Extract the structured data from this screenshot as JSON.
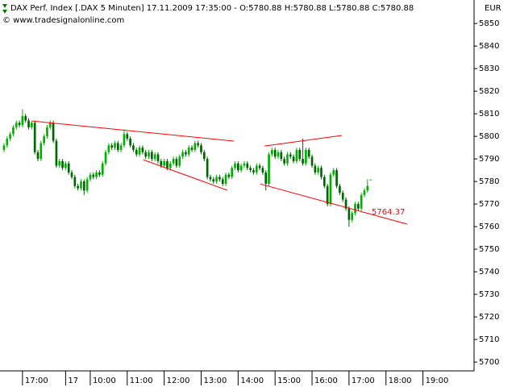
{
  "chart_data": {
    "type": "candlestick",
    "title": "DAX Perf. Index [.DAX  5 Minuten] 17.11.2009 17:35:00 - O:5780.88 H:5780.88 L:5780.88 C:5780.88",
    "subtitle": "© www.tradesignalonline.com",
    "y_label": "EUR",
    "up_color": "#00b000",
    "down_color": "#006400",
    "trend_color": "#ff0000",
    "ylim": [
      5696.1,
      5860.4
    ],
    "yticks": [
      5850,
      5840,
      5830,
      5820,
      5810,
      5800,
      5790,
      5780,
      5770,
      5760,
      5750,
      5740,
      5730,
      5720,
      5710,
      5700
    ],
    "xlim": [
      -1.3,
      152.6
    ],
    "xticks": [
      {
        "value": 6,
        "label": "17:00"
      },
      {
        "value": 20,
        "label": "17"
      },
      {
        "value": 28,
        "label": "10:00"
      },
      {
        "value": 40,
        "label": "11:00"
      },
      {
        "value": 52,
        "label": "12:00"
      },
      {
        "value": 64,
        "label": "13:00"
      },
      {
        "value": 76,
        "label": "14:00"
      },
      {
        "value": 88,
        "label": "15:00"
      },
      {
        "value": 100,
        "label": "16:00"
      },
      {
        "value": 112,
        "label": "17:00"
      },
      {
        "value": 124,
        "label": "18:00"
      },
      {
        "value": 136,
        "label": "19:00"
      }
    ],
    "open": [
      5794,
      5796,
      5799,
      5801,
      5804,
      5806,
      5805,
      5809,
      5807,
      5804,
      5806,
      5793,
      5790,
      5797,
      5800,
      5804,
      5806,
      5798,
      5787,
      5789,
      5786,
      5788,
      5784,
      5782,
      5778,
      5777,
      5780,
      5776,
      5781,
      5783,
      5782,
      5784,
      5783,
      5788,
      5793,
      5796,
      5795,
      5797,
      5794,
      5796,
      5801,
      5799,
      5796,
      5794,
      5792,
      5795,
      5793,
      5791,
      5793,
      5790,
      5792,
      5789,
      5787,
      5789,
      5786,
      5788,
      5790,
      5787,
      5791,
      5793,
      5792,
      5795,
      5794,
      5797,
      5796,
      5793,
      5790,
      5782,
      5781,
      5780,
      5782,
      5781,
      5779,
      5783,
      5782,
      5786,
      5788,
      5785,
      5787,
      5788,
      5786,
      5785,
      5784,
      5787,
      5786,
      5784,
      5779,
      5792,
      5794,
      5791,
      5793,
      5790,
      5788,
      5792,
      5791,
      5789,
      5794,
      5790,
      5788,
      5794,
      5791,
      5787,
      5784,
      5786,
      5782,
      5778,
      5770,
      5783,
      5785,
      5778,
      5775,
      5772,
      5768,
      5763,
      5766,
      5770,
      5768,
      5774,
      5776,
      5780.88
    ],
    "high": [
      5797,
      5800,
      5802,
      5805,
      5807,
      5807,
      5812,
      5810,
      5808,
      5807,
      5807,
      5794,
      5798,
      5801,
      5805,
      5807,
      5807,
      5799,
      5790,
      5790,
      5789,
      5789,
      5785,
      5783,
      5779,
      5781,
      5781,
      5782,
      5784,
      5784,
      5785,
      5785,
      5789,
      5794,
      5797,
      5797,
      5798,
      5798,
      5797,
      5803,
      5802,
      5800,
      5797,
      5795,
      5796,
      5796,
      5794,
      5794,
      5794,
      5793,
      5793,
      5790,
      5790,
      5790,
      5789,
      5791,
      5791,
      5792,
      5794,
      5794,
      5796,
      5796,
      5798,
      5798,
      5797,
      5794,
      5791,
      5783,
      5782,
      5783,
      5783,
      5782,
      5784,
      5784,
      5787,
      5789,
      5789,
      5788,
      5789,
      5789,
      5787,
      5786,
      5788,
      5788,
      5787,
      5785,
      5793,
      5795,
      5795,
      5794,
      5794,
      5791,
      5793,
      5793,
      5792,
      5795,
      5795,
      5799,
      5795,
      5795,
      5792,
      5788,
      5787,
      5787,
      5783,
      5779,
      5784,
      5786,
      5786,
      5779,
      5776,
      5773,
      5769,
      5767,
      5771,
      5771,
      5775,
      5777,
      5781,
      5780.88
    ],
    "low": [
      5793,
      5795,
      5798,
      5800,
      5803,
      5804,
      5804,
      5806,
      5803,
      5803,
      5792,
      5789,
      5789,
      5796,
      5799,
      5803,
      5797,
      5786,
      5786,
      5785,
      5785,
      5783,
      5781,
      5777,
      5776,
      5776,
      5774,
      5775,
      5780,
      5781,
      5781,
      5782,
      5782,
      5787,
      5792,
      5794,
      5794,
      5793,
      5793,
      5795,
      5798,
      5795,
      5793,
      5791,
      5791,
      5792,
      5790,
      5790,
      5789,
      5789,
      5788,
      5786,
      5786,
      5785,
      5785,
      5787,
      5786,
      5786,
      5790,
      5791,
      5791,
      5793,
      5793,
      5795,
      5792,
      5789,
      5781,
      5780,
      5779,
      5779,
      5780,
      5778,
      5778,
      5781,
      5781,
      5785,
      5784,
      5784,
      5786,
      5785,
      5784,
      5783,
      5783,
      5785,
      5783,
      5776,
      5778,
      5791,
      5790,
      5790,
      5789,
      5787,
      5787,
      5790,
      5788,
      5788,
      5789,
      5787,
      5787,
      5790,
      5786,
      5783,
      5783,
      5781,
      5777,
      5769,
      5769,
      5782,
      5777,
      5774,
      5771,
      5767,
      5760,
      5762,
      5765,
      5767,
      5767,
      5773,
      5775,
      5780.88
    ],
    "close": [
      5796,
      5799,
      5801,
      5804,
      5806,
      5805,
      5809,
      5807,
      5804,
      5806,
      5793,
      5790,
      5797,
      5800,
      5804,
      5806,
      5798,
      5787,
      5789,
      5786,
      5788,
      5784,
      5782,
      5778,
      5777,
      5780,
      5776,
      5781,
      5783,
      5782,
      5784,
      5783,
      5788,
      5793,
      5796,
      5795,
      5797,
      5794,
      5796,
      5801,
      5799,
      5796,
      5794,
      5792,
      5795,
      5793,
      5791,
      5793,
      5790,
      5792,
      5789,
      5787,
      5789,
      5786,
      5788,
      5790,
      5787,
      5791,
      5793,
      5792,
      5795,
      5794,
      5797,
      5796,
      5793,
      5790,
      5782,
      5781,
      5780,
      5782,
      5781,
      5779,
      5783,
      5782,
      5786,
      5788,
      5785,
      5787,
      5788,
      5786,
      5785,
      5784,
      5787,
      5786,
      5784,
      5779,
      5792,
      5794,
      5791,
      5793,
      5790,
      5788,
      5792,
      5791,
      5789,
      5794,
      5790,
      5788,
      5794,
      5791,
      5787,
      5784,
      5786,
      5782,
      5778,
      5770,
      5783,
      5785,
      5778,
      5775,
      5772,
      5768,
      5763,
      5766,
      5770,
      5768,
      5774,
      5776,
      5778,
      5780.88
    ],
    "trendlines": [
      {
        "x": [
          9.2,
          74.6
        ],
        "y": [
          5806.8,
          5797.9
        ]
      },
      {
        "x": [
          45.3,
          72.5
        ],
        "y": [
          5789.6,
          5776.1
        ]
      },
      {
        "x": [
          84.6,
          109.7
        ],
        "y": [
          5795.7,
          5800.4
        ]
      },
      {
        "x": [
          83.2,
          130.9
        ],
        "y": [
          5778.9,
          5761.1
        ]
      }
    ],
    "price_label": 5764.37
  }
}
